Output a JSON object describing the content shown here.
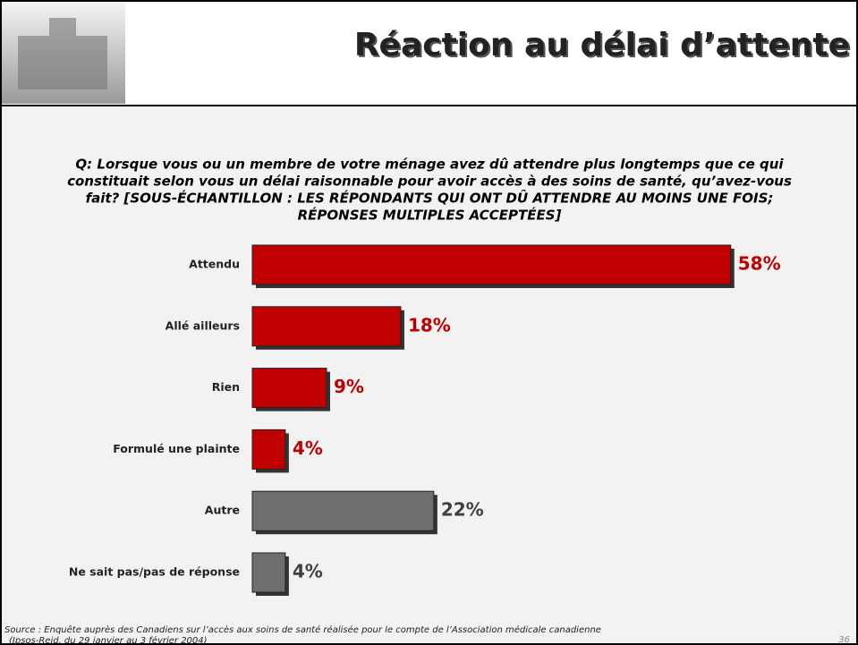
{
  "chart_data": {
    "type": "bar",
    "title": "Réaction au délai d’attente",
    "question": [
      "Q: Lorsque vous ou un membre de votre ménage avez dû attendre plus longtemps que ce qui",
      "constituait selon vous un délai raisonnable pour avoir accès à des soins de santé, qu’avez-vous",
      "fait? [SOUS-ÉCHANTILLON : LES RÉPONDANTS QUI ONT DÛ ATTENDRE AU MOINS UNE FOIS;",
      "RÉPONSES MULTIPLES ACCEPTÉES]"
    ],
    "categories": [
      "Attendu",
      "Allé ailleurs",
      "Rien",
      "Formulé une plainte",
      "Autre",
      "Ne sait pas/pas de réponse"
    ],
    "values": [
      58,
      18,
      9,
      4,
      22,
      4
    ],
    "value_labels": [
      "58%",
      "18%",
      "9%",
      "4%",
      "22%",
      "4%"
    ],
    "colors": [
      "#c00000",
      "#c00000",
      "#c00000",
      "#c00000",
      "#6e6e6e",
      "#6e6e6e"
    ],
    "label_colors": [
      "#c00000",
      "#c00000",
      "#c00000",
      "#c00000",
      "#404040",
      "#404040"
    ],
    "source": [
      "Source : Enquête auprès des Canadiens sur l’accès aux soins de santé réalisée pour le compte de l’Association médicale canadienne",
      "(Ipsos-Reid, du 29 janvier au 3 février 2004)"
    ],
    "page_number": "36"
  }
}
